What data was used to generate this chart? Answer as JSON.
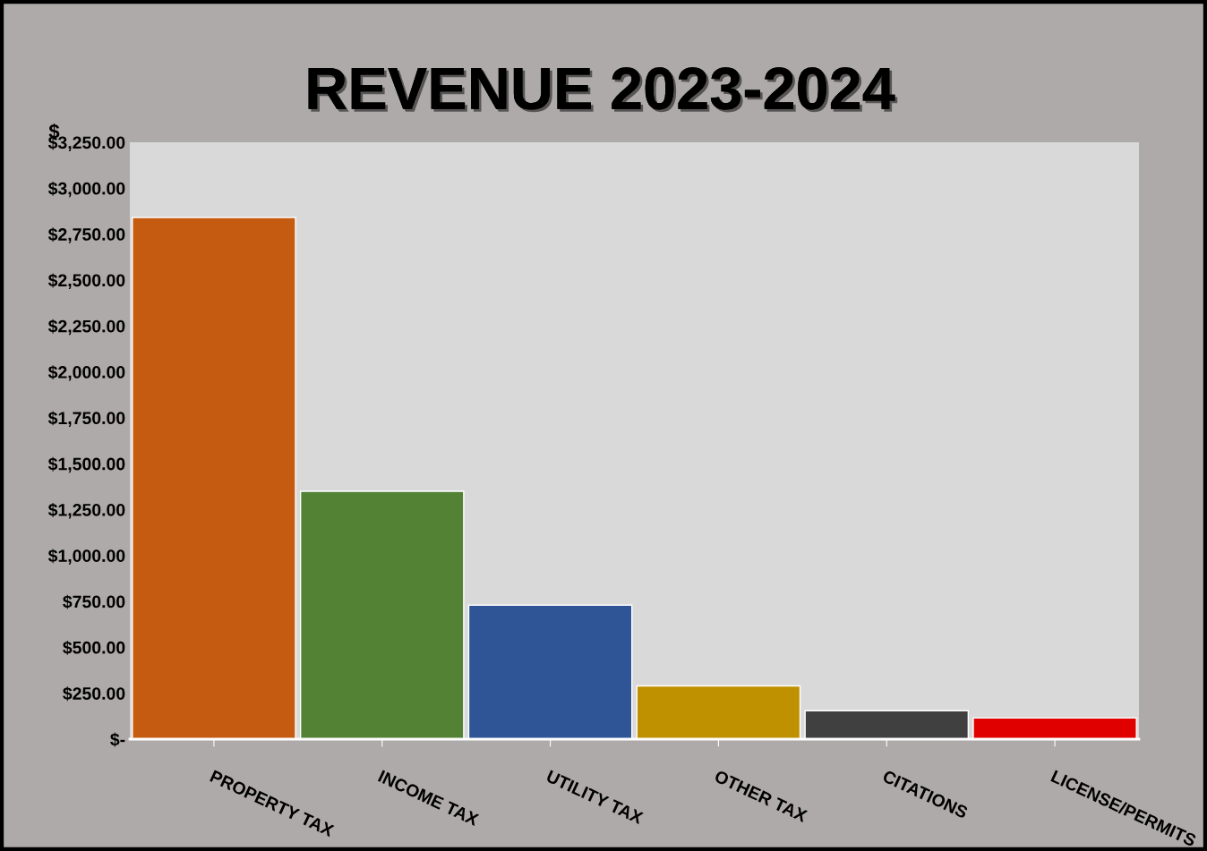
{
  "chart_data": {
    "type": "bar",
    "title": "REVENUE 2023-2024",
    "ylabel": "$",
    "categories": [
      "PROPERTY TAX",
      "INCOME TAX",
      "UTILITY TAX",
      "OTHER TAX",
      "CITATIONS",
      "LICENSE/PERMITS"
    ],
    "values": [
      2840,
      1350,
      730,
      290,
      155,
      115
    ],
    "colors": [
      "#c55a11",
      "#548235",
      "#2f5597",
      "#bf9000",
      "#404040",
      "#e00000"
    ],
    "ylim": [
      0,
      3250
    ],
    "yticks": [
      {
        "value": 0,
        "label": "$-"
      },
      {
        "value": 250,
        "label": "$250.00"
      },
      {
        "value": 500,
        "label": "$500.00"
      },
      {
        "value": 750,
        "label": "$750.00"
      },
      {
        "value": 1000,
        "label": "$1,000.00"
      },
      {
        "value": 1250,
        "label": "$1,250.00"
      },
      {
        "value": 1500,
        "label": "$1,500.00"
      },
      {
        "value": 1750,
        "label": "$1,750.00"
      },
      {
        "value": 2000,
        "label": "$2,000.00"
      },
      {
        "value": 2250,
        "label": "$2,250.00"
      },
      {
        "value": 2500,
        "label": "$2,500.00"
      },
      {
        "value": 2750,
        "label": "$2,750.00"
      },
      {
        "value": 3000,
        "label": "$3,000.00"
      },
      {
        "value": 3250,
        "label": "$3,250.00"
      }
    ],
    "grid": false,
    "legend": false
  }
}
